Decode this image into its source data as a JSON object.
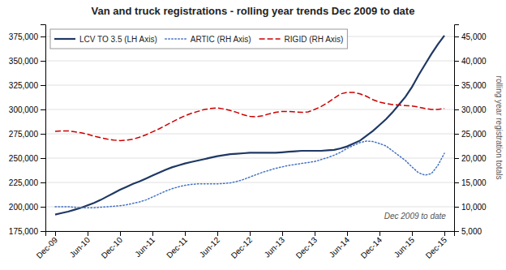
{
  "chart_data": {
    "type": "line",
    "title": "Van and truck registrations - rolling year trends Dec 2009 to date",
    "y2label": "rolling year registration totals",
    "annotation": "Dec 2009 to date",
    "grid": true,
    "legend": "upper left",
    "xlim": [
      -0.15,
      6.15
    ],
    "xticks": [
      {
        "value": 0.0,
        "label": "Dec-09"
      },
      {
        "value": 0.5,
        "label": "Jun-10"
      },
      {
        "value": 1.0,
        "label": "Dec-10"
      },
      {
        "value": 1.5,
        "label": "Jun-11"
      },
      {
        "value": 2.0,
        "label": "Dec-11"
      },
      {
        "value": 2.5,
        "label": "Jun-12"
      },
      {
        "value": 3.0,
        "label": "Dec-12"
      },
      {
        "value": 3.5,
        "label": "Jun-13"
      },
      {
        "value": 4.0,
        "label": "Dec-13"
      },
      {
        "value": 4.5,
        "label": "Jun-14"
      },
      {
        "value": 5.0,
        "label": "Dec-14"
      },
      {
        "value": 5.5,
        "label": "Jun-15"
      },
      {
        "value": 6.0,
        "label": "Dec-15"
      }
    ],
    "ylim": [
      175000,
      387500
    ],
    "yticks": [
      {
        "value": 175000,
        "label": "175,000"
      },
      {
        "value": 200000,
        "label": "200,000"
      },
      {
        "value": 225000,
        "label": "225,000"
      },
      {
        "value": 250000,
        "label": "250,000"
      },
      {
        "value": 275000,
        "label": "275,000"
      },
      {
        "value": 300000,
        "label": "300,000"
      },
      {
        "value": 325000,
        "label": "325,000"
      },
      {
        "value": 350000,
        "label": "350,000"
      },
      {
        "value": 375000,
        "label": "375,000"
      }
    ],
    "y2lim": [
      5000,
      47500
    ],
    "y2ticks": [
      {
        "value": 5000,
        "label": "5,000"
      },
      {
        "value": 10000,
        "label": "10,000"
      },
      {
        "value": 15000,
        "label": "15,000"
      },
      {
        "value": 20000,
        "label": "20,000"
      },
      {
        "value": 25000,
        "label": "25,000"
      },
      {
        "value": 30000,
        "label": "30,000"
      },
      {
        "value": 35000,
        "label": "35,000"
      },
      {
        "value": 40000,
        "label": "40,000"
      },
      {
        "value": 45000,
        "label": "45,000"
      }
    ],
    "x": [
      0.0,
      0.1,
      0.2,
      0.3,
      0.4,
      0.5,
      0.6,
      0.7,
      0.8,
      0.9,
      1.0,
      1.1,
      1.2,
      1.3,
      1.4,
      1.5,
      1.6,
      1.7,
      1.8,
      1.9,
      2.0,
      2.1,
      2.2,
      2.3,
      2.4,
      2.5,
      2.6,
      2.7,
      2.8,
      2.9,
      3.0,
      3.1,
      3.2,
      3.3,
      3.4,
      3.5,
      3.6,
      3.7,
      3.8,
      3.9,
      4.0,
      4.1,
      4.2,
      4.3,
      4.4,
      4.5,
      4.6,
      4.7,
      4.8,
      4.9,
      5.0,
      5.1,
      5.2,
      5.3,
      5.4,
      5.5,
      5.6,
      5.7,
      5.8,
      5.9,
      6.0
    ],
    "series": [
      {
        "name": "LCV TO 3.5 (LH Axis)",
        "color": "#1F3864",
        "line_style": "solid",
        "axis": "y",
        "values": [
          192000,
          193500,
          195000,
          197000,
          199000,
          201500,
          204000,
          207000,
          210500,
          214000,
          217500,
          220500,
          223500,
          226000,
          229000,
          232000,
          235000,
          238000,
          240500,
          242500,
          244500,
          246000,
          247500,
          249000,
          250500,
          252000,
          253000,
          254000,
          254500,
          255000,
          255500,
          255500,
          255500,
          255500,
          255500,
          256000,
          256500,
          257000,
          257500,
          257500,
          257500,
          257500,
          258000,
          258500,
          260000,
          262000,
          265000,
          268000,
          273000,
          278000,
          284000,
          290000,
          297000,
          305000,
          313000,
          323000,
          335000,
          346000,
          357000,
          367000,
          376000
        ]
      },
      {
        "name": "ARTIC (RH Axis)",
        "color": "#4472C4",
        "line_style": "dotted",
        "axis": "y2",
        "values": [
          10000,
          10000,
          10000,
          9900,
          9800,
          9800,
          9800,
          9900,
          10000,
          10100,
          10200,
          10400,
          10700,
          11000,
          11400,
          12000,
          12600,
          13200,
          13700,
          14100,
          14400,
          14600,
          14700,
          14700,
          14700,
          14700,
          14800,
          14900,
          15200,
          15600,
          16100,
          16600,
          17100,
          17500,
          17900,
          18200,
          18500,
          18700,
          18900,
          19100,
          19300,
          19700,
          20100,
          20600,
          21200,
          22000,
          22600,
          23200,
          23500,
          23400,
          23000,
          22500,
          21500,
          20500,
          19500,
          18200,
          17000,
          16500,
          16800,
          18500,
          21000
        ]
      },
      {
        "name": "RIGID (RH Axis)",
        "color": "#CC0000",
        "line_style": "dashed",
        "axis": "y2",
        "values": [
          25500,
          25600,
          25600,
          25400,
          25200,
          24900,
          24500,
          24200,
          23900,
          23700,
          23600,
          23700,
          23900,
          24300,
          24800,
          25400,
          26000,
          26700,
          27400,
          28100,
          28700,
          29200,
          29600,
          30000,
          30200,
          30300,
          30100,
          29800,
          29400,
          28900,
          28600,
          28500,
          28700,
          29100,
          29400,
          29600,
          29600,
          29500,
          29400,
          29500,
          30000,
          30600,
          31400,
          32300,
          33200,
          33500,
          33500,
          33200,
          32700,
          32000,
          31500,
          31200,
          31000,
          30900,
          30800,
          30700,
          30500,
          30200,
          30000,
          30000,
          30200
        ]
      }
    ]
  }
}
